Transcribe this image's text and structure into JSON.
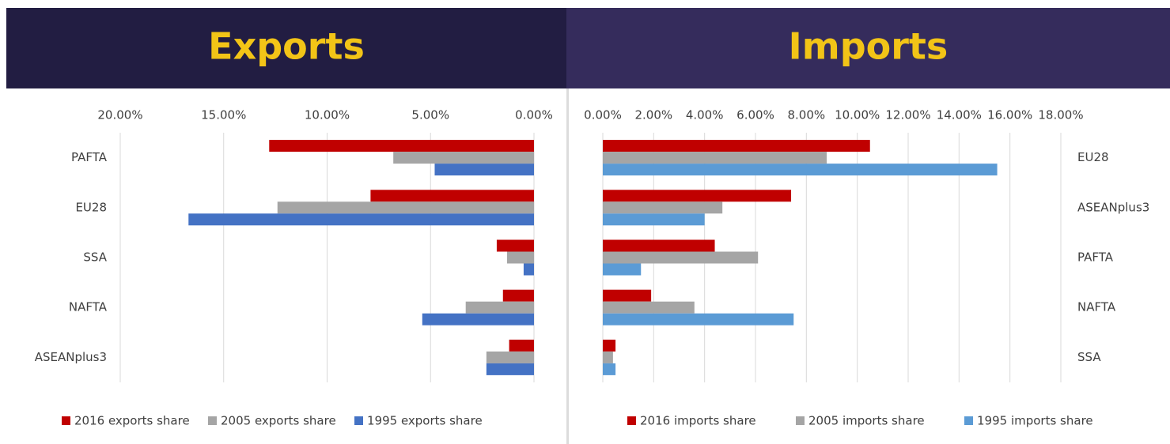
{
  "chart_data": [
    {
      "type": "hbar",
      "title": "Exports",
      "xaxis_reversed": true,
      "legend": "bottom",
      "grid": true,
      "header_color": "#221d42",
      "categories": [
        "PAFTA",
        "EU28",
        "SSA",
        "NAFTA",
        "ASEANplus3"
      ],
      "series": [
        {
          "name": "2016 exports share",
          "color": "#c00000",
          "values": [
            12.8,
            7.9,
            1.8,
            1.5,
            1.2
          ]
        },
        {
          "name": "2005 exports share",
          "color": "#a5a5a5",
          "values": [
            6.8,
            12.4,
            1.3,
            3.3,
            2.3
          ]
        },
        {
          "name": "1995 exports share",
          "color": "#4472c4",
          "values": [
            4.8,
            16.7,
            0.5,
            5.4,
            2.3
          ]
        }
      ],
      "xlim": [
        0,
        20
      ],
      "xticks": [
        {
          "value": 20,
          "label": "20.00%"
        },
        {
          "value": 15,
          "label": "15.00%"
        },
        {
          "value": 10,
          "label": "10.00%"
        },
        {
          "value": 5,
          "label": "5.00%"
        },
        {
          "value": 0,
          "label": "0.00%"
        }
      ]
    },
    {
      "type": "hbar",
      "title": "Imports",
      "xaxis_reversed": false,
      "legend": "bottom",
      "grid": true,
      "header_color": "#352c5c",
      "categories": [
        "EU28",
        "ASEANplus3",
        "PAFTA",
        "NAFTA",
        "SSA"
      ],
      "series": [
        {
          "name": "2016 imports share",
          "color": "#c00000",
          "values": [
            10.5,
            7.4,
            4.4,
            1.9,
            0.5
          ]
        },
        {
          "name": "2005 imports share",
          "color": "#a5a5a5",
          "values": [
            8.8,
            4.7,
            6.1,
            3.6,
            0.4
          ]
        },
        {
          "name": "1995 imports share",
          "color": "#5b9bd5",
          "values": [
            15.5,
            4.0,
            1.5,
            7.5,
            0.5
          ]
        }
      ],
      "xlim": [
        0,
        18
      ],
      "xticks": [
        {
          "value": 0,
          "label": "0.00%"
        },
        {
          "value": 2,
          "label": "2.00%"
        },
        {
          "value": 4,
          "label": "4.00%"
        },
        {
          "value": 6,
          "label": "6.00%"
        },
        {
          "value": 8,
          "label": "8.00%"
        },
        {
          "value": 10,
          "label": "10.00%"
        },
        {
          "value": 12,
          "label": "12.00%"
        },
        {
          "value": 14,
          "label": "14.00%"
        },
        {
          "value": 16,
          "label": "16.00%"
        },
        {
          "value": 18,
          "label": "18.00%"
        }
      ]
    }
  ]
}
